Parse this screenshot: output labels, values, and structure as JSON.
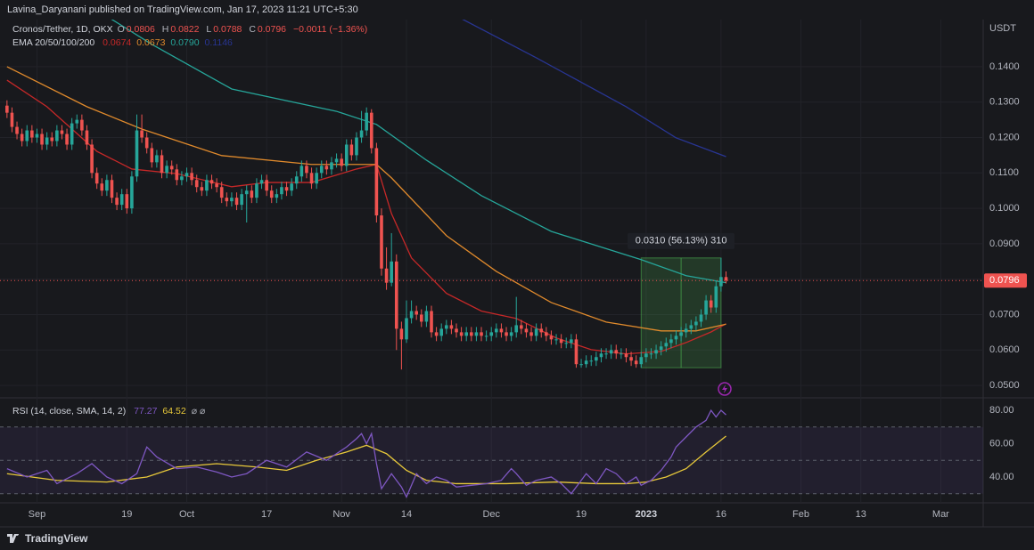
{
  "header": {
    "publisher": "Lavina_Daryanani published on TradingView.com, Jan 17, 2023 11:21 UTC+5:30",
    "brand": "TradingView"
  },
  "chart_data": [
    {
      "type": "candlestick",
      "title": "Cronos/Tether, 1D, OKX",
      "ohlc_keys": [
        "O",
        "H",
        "L",
        "C"
      ],
      "change_label": "−0.0011 (−1.36%)",
      "axis_unit": "USDT",
      "up_color": "#26a69a",
      "down_color": "#ef5350",
      "grid": true,
      "open": [
        0.129,
        0.127,
        0.123,
        0.121,
        0.119,
        0.122,
        0.12,
        0.121,
        0.118,
        0.12,
        0.119,
        0.122,
        0.121,
        0.118,
        0.124,
        0.125,
        0.122,
        0.118,
        0.11,
        0.107,
        0.105,
        0.108,
        0.103,
        0.101,
        0.104,
        0.1,
        0.109,
        0.122,
        0.12,
        0.117,
        0.113,
        0.115,
        0.11,
        0.112,
        0.111,
        0.108,
        0.109,
        0.11,
        0.108,
        0.106,
        0.105,
        0.108,
        0.107,
        0.106,
        0.103,
        0.102,
        0.103,
        0.101,
        0.104,
        0.105,
        0.103,
        0.107,
        0.108,
        0.105,
        0.103,
        0.104,
        0.106,
        0.105,
        0.107,
        0.109,
        0.112,
        0.11,
        0.107,
        0.11,
        0.112,
        0.111,
        0.113,
        0.114,
        0.112,
        0.118,
        0.115,
        0.12,
        0.122,
        0.127,
        0.117,
        0.098,
        0.083,
        0.079,
        0.085,
        0.066,
        0.063,
        0.069,
        0.071,
        0.07,
        0.068,
        0.071,
        0.065,
        0.064,
        0.066,
        0.067,
        0.066,
        0.065,
        0.064,
        0.065,
        0.064,
        0.065,
        0.064,
        0.064,
        0.065,
        0.066,
        0.065,
        0.064,
        0.065,
        0.067,
        0.066,
        0.065,
        0.064,
        0.066,
        0.065,
        0.064,
        0.063,
        0.063,
        0.062,
        0.062,
        0.063,
        0.056,
        0.056,
        0.057,
        0.057,
        0.058,
        0.059,
        0.059,
        0.06,
        0.059,
        0.059,
        0.058,
        0.057,
        0.056,
        0.058,
        0.059,
        0.059,
        0.06,
        0.061,
        0.062,
        0.063,
        0.064,
        0.065,
        0.066,
        0.067,
        0.068,
        0.07,
        0.074,
        0.072,
        0.078,
        0.0806
      ],
      "high": [
        0.1305,
        0.1285,
        0.1245,
        0.1225,
        0.1235,
        0.1235,
        0.1225,
        0.1225,
        0.1215,
        0.1215,
        0.1235,
        0.1235,
        0.1225,
        0.1255,
        0.1265,
        0.1265,
        0.1235,
        0.1195,
        0.1115,
        0.1085,
        0.1095,
        0.1095,
        0.1045,
        0.1055,
        0.1055,
        0.1105,
        0.1265,
        0.1265,
        0.1215,
        0.1185,
        0.1165,
        0.1165,
        0.1135,
        0.1135,
        0.1125,
        0.1105,
        0.1115,
        0.1115,
        0.1095,
        0.1075,
        0.1095,
        0.1095,
        0.1085,
        0.1075,
        0.1045,
        0.1045,
        0.1045,
        0.1055,
        0.1065,
        0.1065,
        0.1085,
        0.1095,
        0.1095,
        0.1065,
        0.1055,
        0.1075,
        0.1075,
        0.1085,
        0.1105,
        0.1135,
        0.1135,
        0.1115,
        0.1115,
        0.1135,
        0.1135,
        0.1145,
        0.1155,
        0.1155,
        0.1195,
        0.1195,
        0.1215,
        0.1275,
        0.1285,
        0.128,
        0.1185,
        0.1,
        0.089,
        0.093,
        0.087,
        0.068,
        0.074,
        0.074,
        0.0725,
        0.0715,
        0.0725,
        0.0725,
        0.0665,
        0.0675,
        0.0685,
        0.0685,
        0.0675,
        0.0665,
        0.0665,
        0.0665,
        0.0665,
        0.0665,
        0.0655,
        0.0665,
        0.0675,
        0.0675,
        0.0665,
        0.0665,
        0.075,
        0.0685,
        0.0675,
        0.0665,
        0.0675,
        0.0675,
        0.0665,
        0.0655,
        0.0645,
        0.0645,
        0.0635,
        0.0645,
        0.0645,
        0.0575,
        0.0585,
        0.0585,
        0.0595,
        0.0605,
        0.0605,
        0.0615,
        0.0615,
        0.0605,
        0.0605,
        0.0595,
        0.0585,
        0.0595,
        0.0605,
        0.0605,
        0.0615,
        0.0625,
        0.0635,
        0.0645,
        0.0655,
        0.0665,
        0.0675,
        0.0685,
        0.0695,
        0.0715,
        0.0755,
        0.0755,
        0.0795,
        0.086,
        0.0822
      ],
      "low": [
        0.1255,
        0.1215,
        0.1195,
        0.1175,
        0.1175,
        0.1185,
        0.1185,
        0.1165,
        0.1165,
        0.1175,
        0.1175,
        0.1195,
        0.1165,
        0.1165,
        0.1225,
        0.1205,
        0.1165,
        0.1085,
        0.1055,
        0.1035,
        0.1035,
        0.1015,
        0.0995,
        0.0995,
        0.0985,
        0.0985,
        0.1075,
        0.1185,
        0.1155,
        0.1115,
        0.1115,
        0.1085,
        0.1085,
        0.1095,
        0.1065,
        0.1065,
        0.1075,
        0.1065,
        0.1045,
        0.1035,
        0.1035,
        0.1055,
        0.1045,
        0.1015,
        0.1005,
        0.1005,
        0.0995,
        0.0995,
        0.096,
        0.1015,
        0.1015,
        0.1055,
        0.1035,
        0.1015,
        0.1015,
        0.1025,
        0.1035,
        0.1035,
        0.1055,
        0.1075,
        0.1085,
        0.1055,
        0.1055,
        0.1085,
        0.1095,
        0.1095,
        0.1115,
        0.1105,
        0.1105,
        0.1135,
        0.1135,
        0.1185,
        0.1205,
        0.1155,
        0.096,
        0.081,
        0.077,
        0.078,
        0.06,
        0.0545,
        0.062,
        0.0675,
        0.0685,
        0.0665,
        0.0665,
        0.0635,
        0.0625,
        0.0625,
        0.0645,
        0.0645,
        0.0635,
        0.0625,
        0.0625,
        0.0625,
        0.0625,
        0.0625,
        0.0625,
        0.0625,
        0.0635,
        0.0635,
        0.0625,
        0.0625,
        0.0635,
        0.0645,
        0.0635,
        0.0625,
        0.0625,
        0.0635,
        0.0625,
        0.0615,
        0.0615,
        0.0605,
        0.0605,
        0.0605,
        0.055,
        0.055,
        0.055,
        0.0555,
        0.0555,
        0.0565,
        0.0575,
        0.0575,
        0.0575,
        0.0575,
        0.0565,
        0.0555,
        0.055,
        0.055,
        0.0565,
        0.0575,
        0.0575,
        0.0585,
        0.0595,
        0.0605,
        0.0615,
        0.0625,
        0.0635,
        0.0645,
        0.0655,
        0.0665,
        0.0685,
        0.0705,
        0.0705,
        0.0765,
        0.0788
      ],
      "close": [
        0.127,
        0.123,
        0.121,
        0.119,
        0.122,
        0.12,
        0.121,
        0.118,
        0.12,
        0.119,
        0.122,
        0.121,
        0.118,
        0.124,
        0.125,
        0.122,
        0.118,
        0.11,
        0.107,
        0.105,
        0.108,
        0.103,
        0.101,
        0.104,
        0.1,
        0.109,
        0.122,
        0.12,
        0.117,
        0.113,
        0.115,
        0.11,
        0.112,
        0.111,
        0.108,
        0.109,
        0.11,
        0.108,
        0.106,
        0.105,
        0.108,
        0.107,
        0.106,
        0.103,
        0.102,
        0.103,
        0.101,
        0.104,
        0.105,
        0.103,
        0.107,
        0.108,
        0.105,
        0.103,
        0.104,
        0.106,
        0.105,
        0.107,
        0.109,
        0.112,
        0.11,
        0.107,
        0.11,
        0.112,
        0.111,
        0.113,
        0.114,
        0.112,
        0.118,
        0.115,
        0.12,
        0.122,
        0.127,
        0.117,
        0.098,
        0.083,
        0.079,
        0.085,
        0.066,
        0.063,
        0.069,
        0.071,
        0.07,
        0.068,
        0.071,
        0.065,
        0.064,
        0.066,
        0.067,
        0.066,
        0.065,
        0.064,
        0.065,
        0.064,
        0.065,
        0.064,
        0.064,
        0.065,
        0.066,
        0.065,
        0.064,
        0.065,
        0.067,
        0.066,
        0.065,
        0.064,
        0.066,
        0.065,
        0.064,
        0.063,
        0.063,
        0.062,
        0.062,
        0.063,
        0.056,
        0.056,
        0.057,
        0.057,
        0.058,
        0.059,
        0.059,
        0.06,
        0.059,
        0.059,
        0.058,
        0.057,
        0.056,
        0.058,
        0.059,
        0.059,
        0.06,
        0.061,
        0.062,
        0.063,
        0.064,
        0.065,
        0.066,
        0.067,
        0.068,
        0.07,
        0.074,
        0.072,
        0.078,
        0.0806,
        0.0796
      ],
      "overlay_title": "EMA 20/50/100/200",
      "series": [
        {
          "color": "#c62828",
          "legend_label": "0.0674",
          "x": [
            0,
            8,
            18,
            25,
            34,
            45,
            52,
            61,
            70,
            74,
            77,
            81,
            88,
            95,
            102,
            110,
            117,
            124,
            131,
            136,
            141,
            144
          ],
          "values": [
            0.1362,
            0.1287,
            0.1161,
            0.1111,
            0.1098,
            0.1061,
            0.1073,
            0.1073,
            0.1111,
            0.1124,
            0.0985,
            0.086,
            0.076,
            0.071,
            0.0689,
            0.0634,
            0.0601,
            0.0589,
            0.0596,
            0.0621,
            0.0651,
            0.0674
          ]
        },
        {
          "color": "#e08a2c",
          "legend_label": "0.0673",
          "x": [
            0,
            16,
            27,
            43,
            61,
            74,
            77,
            88,
            98,
            109,
            120,
            131,
            138,
            144
          ],
          "values": [
            0.14,
            0.1287,
            0.1224,
            0.1149,
            0.1124,
            0.1124,
            0.1086,
            0.0923,
            0.0822,
            0.0734,
            0.0679,
            0.0654,
            0.0654,
            0.0673
          ]
        },
        {
          "color": "#26a69a",
          "legend_label": "0.0790",
          "x": [
            19,
            29,
            45,
            66,
            74,
            84,
            95,
            109,
            127,
            136,
            144
          ],
          "values": [
            0.1551,
            0.1463,
            0.1337,
            0.1274,
            0.1237,
            0.1136,
            0.1036,
            0.0935,
            0.0855,
            0.081,
            0.079
          ]
        },
        {
          "color": "#283593",
          "legend_label": "0.1146",
          "x": [
            90,
            106,
            124,
            134,
            144
          ],
          "values": [
            0.1543,
            0.1425,
            0.1287,
            0.1199,
            0.1146
          ]
        }
      ],
      "measure": {
        "from": 0.055,
        "to": 0.086,
        "start": 127,
        "end": 143,
        "label": "0.0310 (56.13%) 310"
      },
      "xlim": [
        -1.4,
        195.5
      ],
      "xticks": [
        {
          "value": 6,
          "label": "Sep"
        },
        {
          "value": 24,
          "label": "19"
        },
        {
          "value": 36,
          "label": "Oct"
        },
        {
          "value": 52,
          "label": "17"
        },
        {
          "value": 67,
          "label": "Nov"
        },
        {
          "value": 80,
          "label": "14"
        },
        {
          "value": 97,
          "label": "Dec"
        },
        {
          "value": 115,
          "label": "19"
        },
        {
          "value": 128,
          "label": "2023"
        },
        {
          "value": 143,
          "label": "16"
        },
        {
          "value": 159,
          "label": "Feb"
        },
        {
          "value": 171,
          "label": "13"
        },
        {
          "value": 187,
          "label": "Mar"
        }
      ],
      "ylim": [
        0.0465,
        0.1533
      ],
      "yticks": [
        {
          "value": 0.14,
          "label": "0.1400"
        },
        {
          "value": 0.13,
          "label": "0.1300"
        },
        {
          "value": 0.12,
          "label": "0.1200"
        },
        {
          "value": 0.11,
          "label": "0.1100"
        },
        {
          "value": 0.1,
          "label": "0.1000"
        },
        {
          "value": 0.09,
          "label": "0.0900"
        },
        {
          "value": 0.08,
          "label": "0.0800"
        },
        {
          "value": 0.07,
          "label": "0.0700"
        },
        {
          "value": 0.06,
          "label": "0.0600"
        },
        {
          "value": 0.05,
          "label": "0.0500"
        }
      ]
    },
    {
      "type": "line",
      "title": "RSI (14, close, SMA, 14, 2)",
      "extra_label": "⌀ ⌀",
      "grid": true,
      "bands": [
        30,
        50,
        70
      ],
      "band_fill": "rgba(126,87,194,0.10)",
      "series": [
        {
          "color": "#7e57c2",
          "x": [
            0,
            4,
            8,
            10,
            14,
            17,
            20,
            23,
            26,
            28,
            30,
            34,
            38,
            42,
            45,
            48,
            52,
            56,
            60,
            64,
            68,
            70,
            71,
            72,
            73,
            74,
            75,
            77,
            79,
            80,
            82,
            84,
            86,
            88,
            90,
            93,
            96,
            99,
            101,
            102,
            104,
            106,
            109,
            111,
            113,
            115,
            116,
            118,
            120,
            122,
            124,
            126,
            127,
            129,
            131,
            133,
            134,
            136,
            138,
            140,
            141,
            142,
            143,
            144
          ],
          "values": [
            45,
            40,
            44,
            36,
            42,
            48,
            40,
            36,
            42,
            58,
            52,
            45,
            46,
            43,
            40,
            42,
            50,
            46,
            55,
            50,
            58,
            63,
            66,
            60,
            66,
            48,
            33,
            42,
            34,
            28,
            42,
            36,
            40,
            38,
            34,
            35,
            36,
            38,
            45,
            42,
            35,
            38,
            40,
            36,
            30,
            38,
            42,
            36,
            45,
            42,
            36,
            40,
            35,
            38,
            44,
            52,
            58,
            64,
            70,
            74,
            80,
            76,
            80,
            77.27
          ]
        },
        {
          "color": "#e8c93a",
          "x": [
            0,
            10,
            20,
            28,
            34,
            42,
            50,
            56,
            62,
            68,
            72,
            76,
            80,
            84,
            90,
            100,
            110,
            118,
            124,
            128,
            132,
            136,
            140,
            144
          ],
          "values": [
            42,
            38,
            37,
            40,
            46,
            48,
            46,
            44,
            50,
            55,
            59,
            54,
            44,
            38,
            36,
            36,
            37,
            36,
            36,
            37,
            40,
            45,
            55,
            64.52
          ]
        }
      ],
      "ylim": [
        24.5,
        87.5
      ],
      "yticks": [
        {
          "value": 80,
          "label": "80.00"
        },
        {
          "value": 60,
          "label": "60.00"
        },
        {
          "value": 40,
          "label": "40.00"
        }
      ]
    }
  ]
}
